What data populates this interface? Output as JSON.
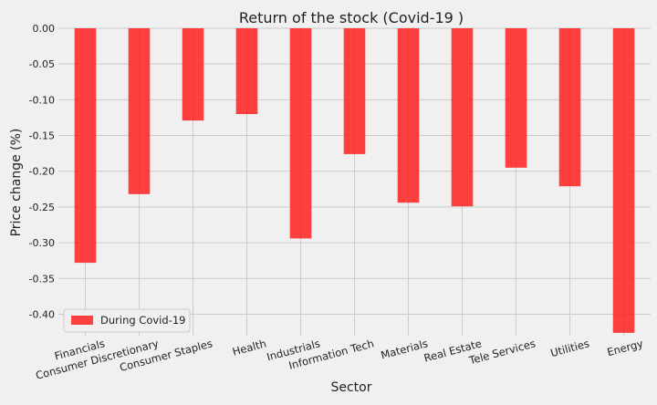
{
  "chart_data": {
    "type": "bar",
    "title": "Return of the stock (Covid-19 )",
    "xlabel": "Sector",
    "ylabel": "Price change (%)",
    "categories": [
      "Financials",
      "Consumer Discretionary",
      "Consumer Staples",
      "Health",
      "Industrials",
      "Information Tech",
      "Materials",
      "Real Estate",
      "Tele Services",
      "Utilities",
      "Energy"
    ],
    "series": [
      {
        "name": "During Covid-19",
        "color": "#ff2020",
        "values": [
          -0.328,
          -0.232,
          -0.129,
          -0.12,
          -0.294,
          -0.176,
          -0.244,
          -0.249,
          -0.195,
          -0.221,
          -0.426
        ]
      }
    ],
    "ylim": [
      -0.43,
      0.0
    ],
    "yticks": [
      0.0,
      -0.05,
      -0.1,
      -0.15,
      -0.2,
      -0.25,
      -0.3,
      -0.35,
      -0.4
    ],
    "ytick_labels": [
      "0.00",
      "-0.05",
      "-0.10",
      "-0.15",
      "-0.20",
      "-0.25",
      "-0.30",
      "-0.35",
      "-0.40"
    ],
    "grid": true,
    "legend_position": "bottom-left"
  }
}
